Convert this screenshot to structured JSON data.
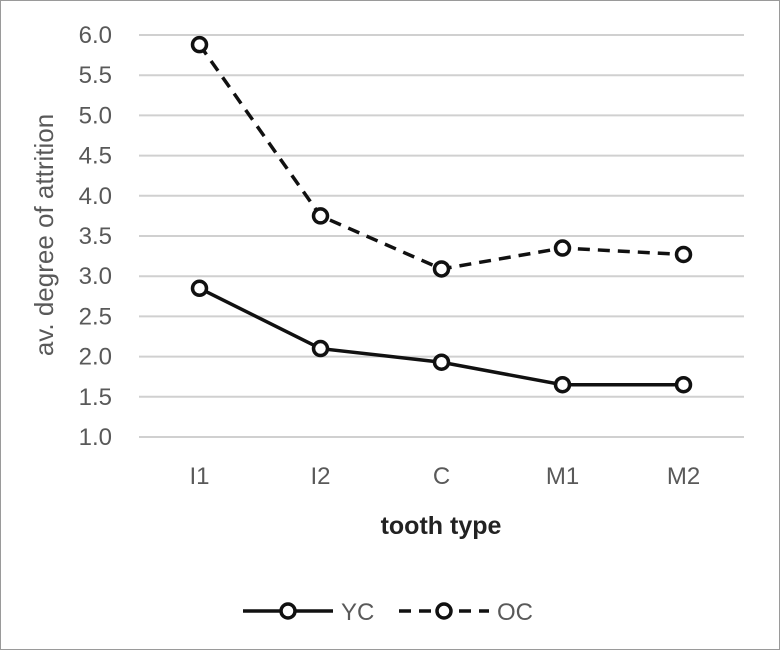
{
  "chart_data": {
    "type": "line",
    "title": "",
    "xlabel": "tooth type",
    "ylabel": "av. degree of attrition",
    "categories": [
      "I1",
      "I2",
      "C",
      "M1",
      "M2"
    ],
    "ylim": [
      1.0,
      6.0
    ],
    "yticks": [
      "1.0",
      "1.5",
      "2.0",
      "2.5",
      "3.0",
      "3.5",
      "4.0",
      "4.5",
      "5.0",
      "5.5",
      "6.0"
    ],
    "grid": true,
    "legend_position": "bottom",
    "series": [
      {
        "name": "YC",
        "style": "solid",
        "values": [
          2.85,
          2.1,
          1.93,
          1.65,
          1.65
        ]
      },
      {
        "name": "OC",
        "style": "dashed",
        "values": [
          5.88,
          3.75,
          3.09,
          3.35,
          3.27
        ]
      }
    ],
    "colors": {
      "line": "#111111",
      "grid": "#d0d0d0",
      "text": "#595959"
    }
  }
}
